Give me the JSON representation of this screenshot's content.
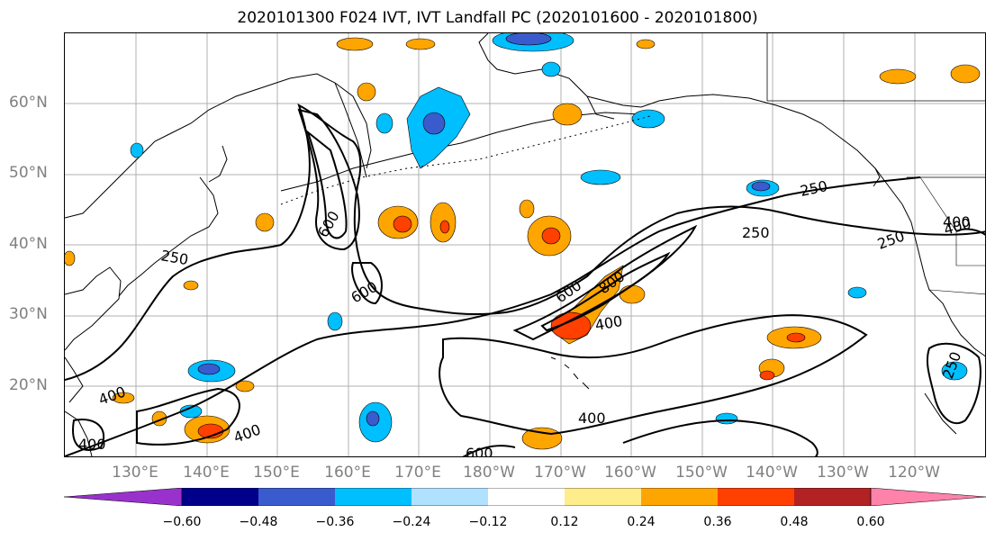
{
  "title": "2020101300 F024 IVT, IVT Landfall PC (2020101600 - 2020101800)",
  "lat_labels": [
    "60°N",
    "50°N",
    "40°N",
    "30°N",
    "20°N"
  ],
  "lon_labels": [
    "130°E",
    "140°E",
    "150°E",
    "160°E",
    "170°E",
    "180°W",
    "170°W",
    "160°W",
    "150°W",
    "140°W",
    "130°W",
    "120°W"
  ],
  "contour_labels": [
    "250",
    "250",
    "250",
    "250",
    "400",
    "600",
    "600",
    "600",
    "800",
    "400",
    "400",
    "400",
    "400",
    "400",
    "600",
    "250",
    "400"
  ],
  "colorbar": {
    "ticks": [
      "−0.60",
      "−0.48",
      "−0.36",
      "−0.24",
      "−0.12",
      "0.12",
      "0.24",
      "0.36",
      "0.48",
      "0.60"
    ],
    "colors": [
      "#9932cc",
      "#00008b",
      "#3a5bcd",
      "#00bfff",
      "#b0e2ff",
      "#ffffff",
      "#ffec8b",
      "#ffa500",
      "#ff4000",
      "#b22222",
      "#ff82ab"
    ]
  },
  "fill_colors": {
    "neg_strong": "#3a5bcd",
    "neg_mid": "#00bfff",
    "neg_light": "#b0e2ff",
    "pos_light": "#ffec8b",
    "pos_mid": "#ffa500",
    "pos_strong": "#ff4000"
  }
}
